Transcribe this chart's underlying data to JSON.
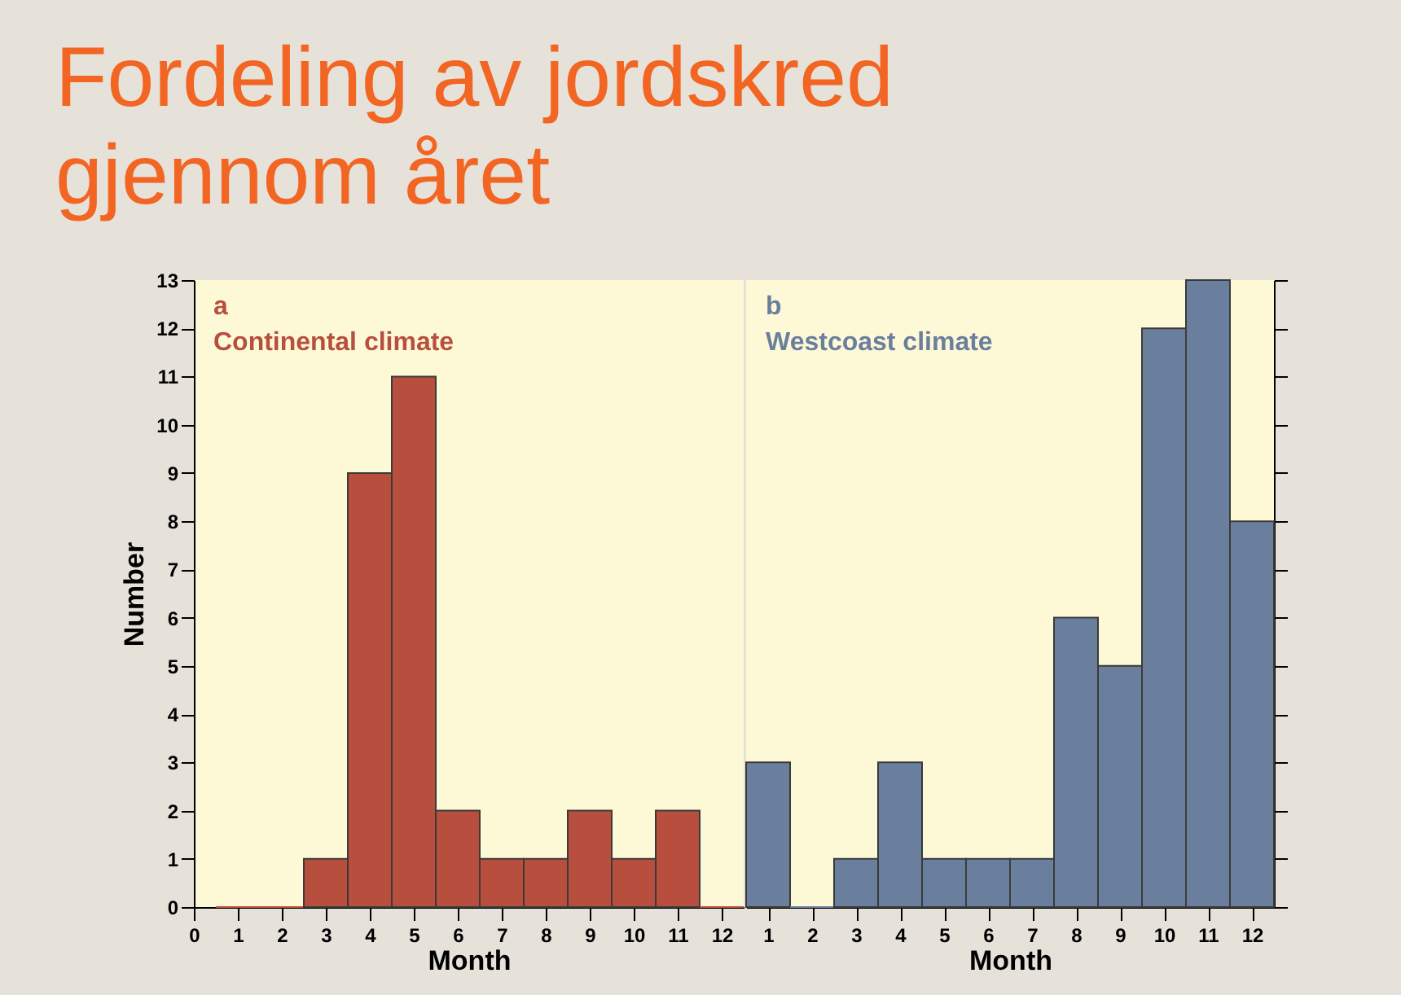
{
  "chart_data": [
    {
      "type": "bar",
      "title": "Fordeling av jordskred gjennom året",
      "xlabel": "Month",
      "ylabel": "Number",
      "annotations": [
        "a",
        "Continental climate"
      ],
      "color": "#b84f3e",
      "x": [
        1,
        2,
        3,
        4,
        5,
        6,
        7,
        8,
        9,
        10,
        11,
        12
      ],
      "values": [
        0,
        0,
        1,
        9,
        11,
        2,
        1,
        1,
        2,
        1,
        2,
        0
      ],
      "xlim": [
        0,
        12.5
      ],
      "xticks": [
        0,
        1,
        2,
        3,
        4,
        5,
        6,
        7,
        8,
        9,
        10,
        11,
        12
      ],
      "ylim": [
        0,
        13
      ],
      "yticks": [
        0,
        1,
        2,
        3,
        4,
        5,
        6,
        7,
        8,
        9,
        10,
        11,
        12,
        13
      ]
    },
    {
      "type": "bar",
      "xlabel": "Month",
      "annotations": [
        "b",
        "Westcoast climate"
      ],
      "color": "#6a7f9d",
      "tick_labels": "x",
      "x": [
        1,
        2,
        3,
        4,
        5,
        6,
        7,
        8,
        9,
        10,
        11,
        12
      ],
      "values": [
        3,
        0,
        1,
        3,
        1,
        1,
        1,
        6,
        5,
        12,
        13,
        8
      ],
      "xlim": [
        0.5,
        12.5
      ],
      "xticks": [
        1,
        2,
        3,
        4,
        5,
        6,
        7,
        8,
        9,
        10,
        11,
        12
      ],
      "ylim": [
        0,
        13
      ],
      "yticks": [
        0,
        1,
        2,
        3,
        4,
        5,
        6,
        7,
        8,
        9,
        10,
        11,
        12,
        13
      ]
    }
  ]
}
